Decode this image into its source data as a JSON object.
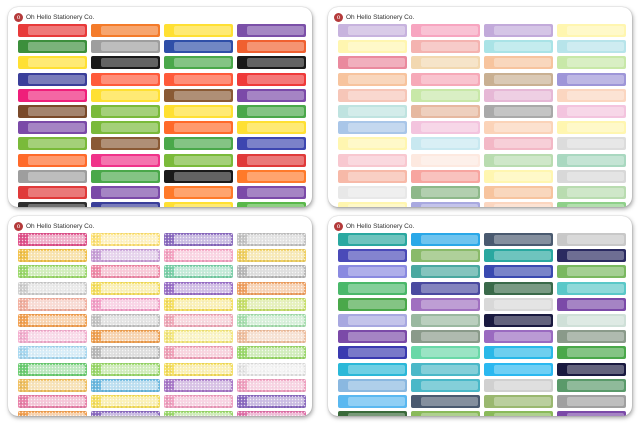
{
  "brand": {
    "name": "Oh Hello Stationery Co.",
    "logo_letter": "o"
  },
  "sheets": [
    {
      "style": "solid",
      "rows": [
        [
          "#e83a3a",
          "#f47b2a",
          "#ffe033",
          "#7b50a8"
        ],
        [
          "#3c8f3c",
          "#9e9e9e",
          "#2f4fa8",
          "#f06030"
        ],
        [
          "#ffe033",
          "#1a1a1a",
          "#4aa84a",
          "#1a1a1a"
        ],
        [
          "#3a3f9a",
          "#ff5a3a",
          "#ff5a3a",
          "#ef3a3a"
        ],
        [
          "#ef1f7a",
          "#ffe033",
          "#8a5a35",
          "#7b4aa8"
        ],
        [
          "#7a4a2a",
          "#7aba3a",
          "#ffe033",
          "#4aa84a"
        ],
        [
          "#7b4aa8",
          "#7aba3a",
          "#ff6a2a",
          "#ffe033"
        ],
        [
          "#7aba3a",
          "#8a5a35",
          "#4aa84a",
          "#3d46b0"
        ],
        [
          "#ff6a2a",
          "#f0338a",
          "#7aba3a",
          "#e03a3a"
        ],
        [
          "#9e9e9e",
          "#4aa84a",
          "#1a1a1a",
          "#ff7a2a"
        ],
        [
          "#e03a3a",
          "#7b4aa8",
          "#ff7a2a",
          "#7b4aa8"
        ],
        [
          "#2f2f2f",
          "#3a3f9a",
          "#ffe033",
          "#5ab84a"
        ]
      ]
    },
    {
      "style": "pastel",
      "rows": [
        [
          "#c7b3de",
          "#f7a5c0",
          "#c2aada",
          "#fff6b0"
        ],
        [
          "#fff6b0",
          "#f4b3b0",
          "#a9e3e6",
          "#b7e4ea"
        ],
        [
          "#ea8a9e",
          "#f2d8b0",
          "#f7c49e",
          "#c8e8a8"
        ],
        [
          "#f7c49e",
          "#f6a9b8",
          "#c9b092",
          "#9e96d8"
        ],
        [
          "#f6c6b8",
          "#c8e8a8",
          "#e6b8d6",
          "#fbd6c0"
        ],
        [
          "#bfe3e0",
          "#e6b8a0",
          "#a9a9a9",
          "#f3c4de"
        ],
        [
          "#a9c6e8",
          "#f3c4de",
          "#fbd3b8",
          "#fff6b0"
        ],
        [
          "#fff6b0",
          "#c8e8f0",
          "#f3b8c6",
          "#dcdcdc"
        ],
        [
          "#f8c8d0",
          "#fde9e0",
          "#b9dcb0",
          "#a9d8c0"
        ],
        [
          "#f7b9a8",
          "#f7a5a0",
          "#fff6b0",
          "#d8d8d8"
        ],
        [
          "#e8e8e8",
          "#8eb88a",
          "#f7c49e",
          "#b9dcb0"
        ],
        [
          "#fff6b0",
          "#a9a9e0",
          "#fbd6c0",
          "#8fd08a"
        ]
      ]
    },
    {
      "style": "glitter",
      "rows": [
        [
          "#e0508a",
          "#ffe47a",
          "#8a6ac0",
          "#c4c4c4"
        ],
        [
          "#f2c24a",
          "#c9a0d8",
          "#f5a3c2",
          "#f0d060"
        ],
        [
          "#9ad86a",
          "#f08aa8",
          "#7ad0a8",
          "#b8b8b8"
        ],
        [
          "#d0d0d0",
          "#f6e060",
          "#9a70c8",
          "#f0a060"
        ],
        [
          "#f2b0a0",
          "#f4a0c8",
          "#f6e060",
          "#c8e06a"
        ],
        [
          "#f2a050",
          "#c4c4c4",
          "#f0a8b8",
          "#a8e0b0"
        ],
        [
          "#f4b0d0",
          "#f0a050",
          "#f5e880",
          "#f0c0a0"
        ],
        [
          "#a8d8f0",
          "#b8b8b8",
          "#f0a0b8",
          "#9ad86a"
        ],
        [
          "#6acc70",
          "#9ad86a",
          "#f6e060",
          "#e8e8e8"
        ],
        [
          "#f0c060",
          "#6ab8e0",
          "#a878c8",
          "#f0a0c0"
        ],
        [
          "#e880a8",
          "#f6e060",
          "#f0a0c0",
          "#8a6ac0"
        ],
        [
          "#f2a050",
          "#8a6ac0",
          "#9ad86a",
          "#e070a8"
        ]
      ]
    },
    {
      "style": "solid",
      "rows": [
        [
          "#2aa8a0",
          "#2aa8e8",
          "#4a5a70",
          "#c8c8c8"
        ],
        [
          "#4a4ab8",
          "#8aba6a",
          "#2aa8a0",
          "#2a2a60"
        ],
        [
          "#8a8ae0",
          "#4aa8a0",
          "#3a4ab0",
          "#7ab860"
        ],
        [
          "#4ab86a",
          "#4a4aa0",
          "#3a6a4a",
          "#5ac8c8"
        ],
        [
          "#4aa84a",
          "#a070c0",
          "#d8d8d8",
          "#7b4aa8"
        ],
        [
          "#a8a8e0",
          "#9ab8a0",
          "#1a1a40",
          "#cfe0d8"
        ],
        [
          "#7b4aa8",
          "#8a9a8a",
          "#9a6ac0",
          "#8a9a8a"
        ],
        [
          "#3a3ab0",
          "#6ad8a8",
          "#2ab8e8",
          "#4aa84a"
        ],
        [
          "#2ab8d8",
          "#4ab8c8",
          "#2ab8f0",
          "#1a1a40"
        ],
        [
          "#8ab8e0",
          "#4ab8c8",
          "#d0d0d0",
          "#5a9a6a"
        ],
        [
          "#5ab8f0",
          "#4a5a70",
          "#9ab870",
          "#a0a0a0"
        ],
        [
          "#3a6a3a",
          "#8aba5a",
          "#8aba5a",
          "#7b4aa8"
        ]
      ]
    }
  ]
}
